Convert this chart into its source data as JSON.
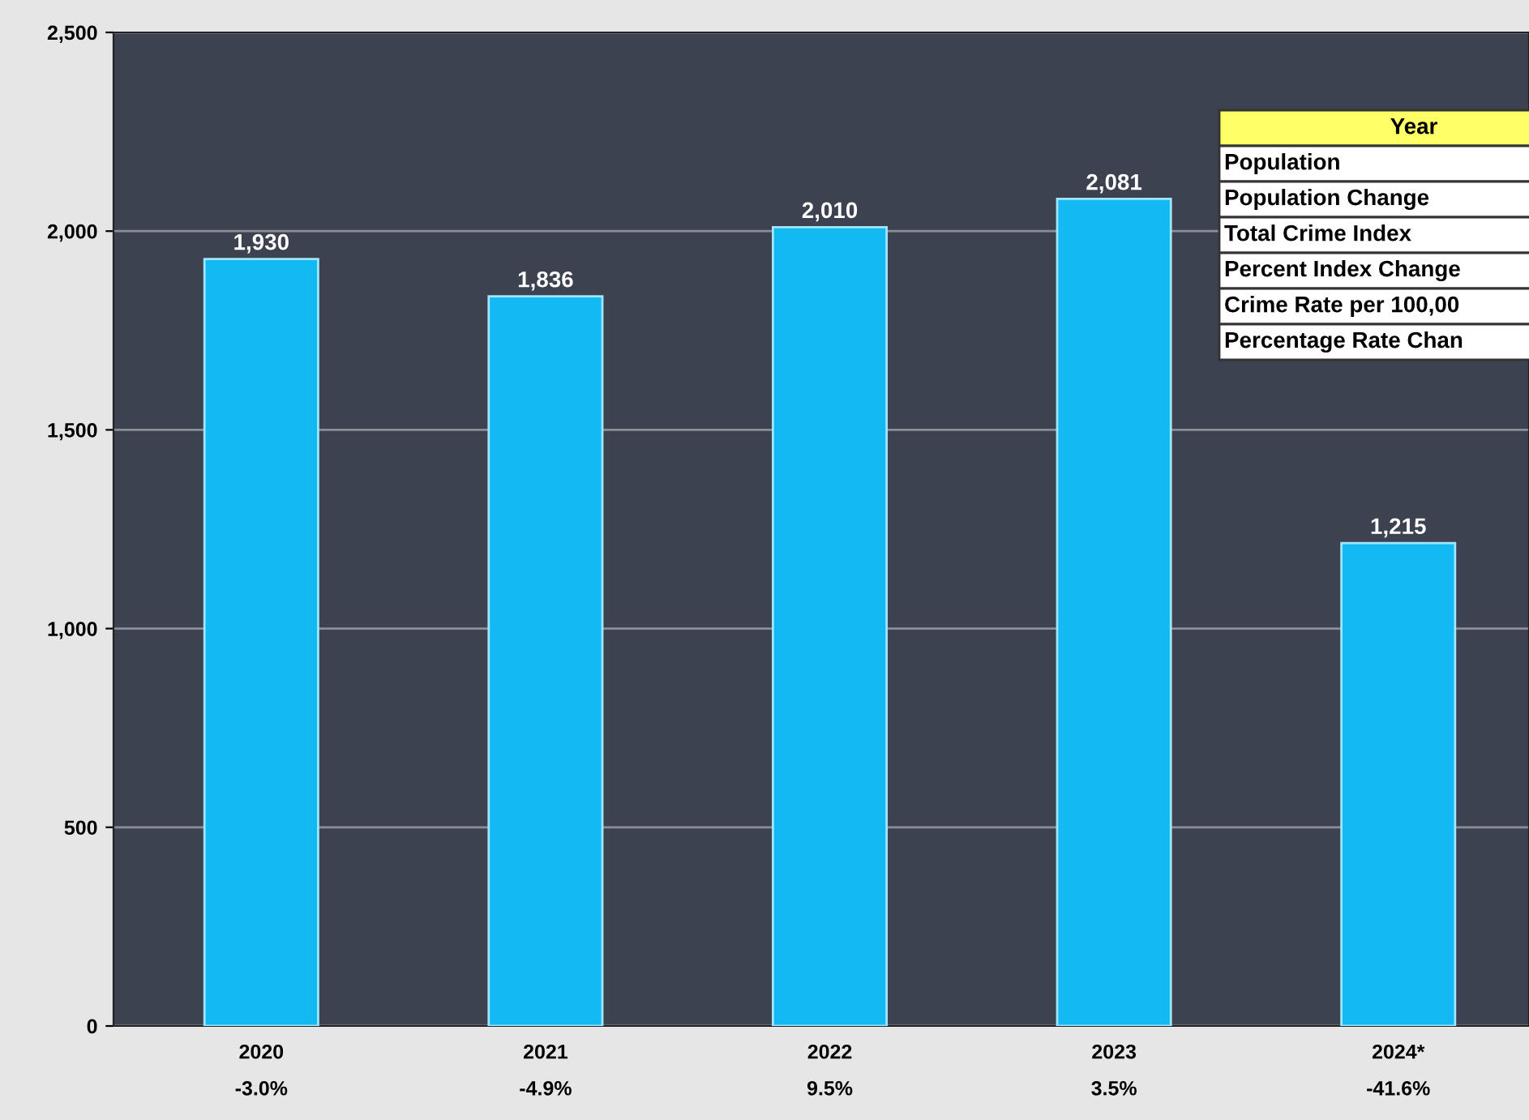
{
  "chart_data": {
    "type": "bar",
    "categories": [
      "2020\n-3.0%",
      "2021\n-4.9%",
      "2022\n9.5%",
      "2023\n3.5%",
      "2024*\n-41.6%"
    ],
    "values": [
      1930,
      1836,
      2010,
      2081,
      1215
    ],
    "value_labels": [
      "1,930",
      "1,836",
      "2,010",
      "2,081",
      "1,215"
    ],
    "color": "#12b9f2",
    "ylim": [
      0,
      2500
    ],
    "yticks": [
      {
        "value": 0,
        "label": "0"
      },
      {
        "value": 500,
        "label": "500"
      },
      {
        "value": 1000,
        "label": "1,000"
      },
      {
        "value": 1500,
        "label": "1,500"
      },
      {
        "value": 2000,
        "label": "2,000"
      },
      {
        "value": 2500,
        "label": "2,500"
      }
    ],
    "grid": "y",
    "annotations": [
      "Year",
      "Population",
      "Population Change",
      "Total Crime Index",
      "Percent Index Change",
      "Crime Rate per 100,00",
      "Percentage Rate Chan"
    ]
  }
}
